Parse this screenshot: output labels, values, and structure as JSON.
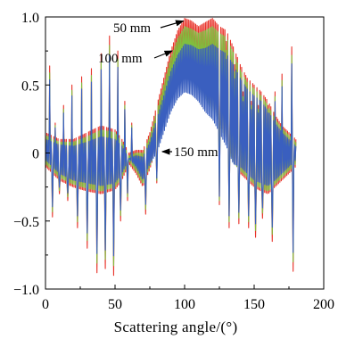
{
  "chart_data": {
    "type": "line",
    "title": "",
    "xlabel": "Scattering angle/(°)",
    "ylabel": "",
    "xlim": [
      0,
      200
    ],
    "ylim": [
      -1.0,
      1.0
    ],
    "x_ticks": [
      0,
      50,
      100,
      150,
      200
    ],
    "x_tick_labels": [
      "0",
      "50",
      "100",
      "150",
      "200"
    ],
    "y_ticks": [
      -1.0,
      -0.5,
      0,
      0.5,
      1.0
    ],
    "y_tick_labels": [
      "−1.0",
      "−0.5",
      "0",
      "0.5",
      "1.0"
    ],
    "grid": false,
    "legend": "none",
    "x_range": [
      0,
      180
    ],
    "series": [
      {
        "name": "50 mm",
        "color": "#e8332a",
        "x": [
          0,
          10,
          20,
          30,
          40,
          50,
          55,
          60,
          65,
          70,
          75,
          80,
          85,
          90,
          95,
          100,
          105,
          110,
          115,
          120,
          125,
          130,
          135,
          140,
          145,
          150,
          155,
          160,
          165,
          170,
          175,
          180
        ],
        "upper": [
          0.15,
          0.1,
          0.1,
          0.15,
          0.2,
          0.17,
          0.1,
          0.0,
          0.02,
          0.02,
          0.15,
          0.35,
          0.55,
          0.75,
          0.9,
          0.99,
          0.97,
          0.93,
          0.96,
          0.99,
          0.93,
          0.9,
          0.78,
          0.65,
          0.55,
          0.5,
          0.45,
          0.38,
          0.28,
          0.2,
          0.15,
          0.1
        ],
        "lower": [
          -0.1,
          -0.2,
          -0.25,
          -0.28,
          -0.3,
          -0.27,
          -0.2,
          -0.08,
          -0.15,
          -0.25,
          -0.12,
          0.05,
          0.25,
          0.42,
          0.55,
          0.62,
          0.6,
          0.5,
          0.42,
          0.35,
          0.25,
          0.1,
          -0.05,
          -0.15,
          -0.2,
          -0.25,
          -0.28,
          -0.3,
          -0.25,
          -0.2,
          -0.15,
          -0.1
        ],
        "peaks": [
          {
            "x": 3,
            "y": 0.64
          },
          {
            "x": 7,
            "y": 0.22
          },
          {
            "x": 13,
            "y": 0.35
          },
          {
            "x": 19,
            "y": 0.5
          },
          {
            "x": 26,
            "y": 0.56
          },
          {
            "x": 33,
            "y": 0.62
          },
          {
            "x": 40,
            "y": 0.73
          },
          {
            "x": 46,
            "y": 0.86
          },
          {
            "x": 52,
            "y": 0.75
          },
          {
            "x": 57,
            "y": 0.38
          },
          {
            "x": 62,
            "y": 0.22
          },
          {
            "x": 130,
            "y": 0.82
          },
          {
            "x": 136,
            "y": 0.65
          },
          {
            "x": 142,
            "y": 0.45
          },
          {
            "x": 148,
            "y": 0.38
          },
          {
            "x": 153,
            "y": 0.35
          },
          {
            "x": 160,
            "y": 0.35
          },
          {
            "x": 165,
            "y": 0.45
          },
          {
            "x": 170,
            "y": 0.58
          },
          {
            "x": 177,
            "y": 0.78
          }
        ],
        "troughs": [
          {
            "x": 5,
            "y": -0.47
          },
          {
            "x": 10,
            "y": -0.3
          },
          {
            "x": 16,
            "y": -0.35
          },
          {
            "x": 23,
            "y": -0.55
          },
          {
            "x": 30,
            "y": -0.7
          },
          {
            "x": 37,
            "y": -0.88
          },
          {
            "x": 43,
            "y": -0.85
          },
          {
            "x": 49,
            "y": -0.9
          },
          {
            "x": 54,
            "y": -0.5
          },
          {
            "x": 59,
            "y": -0.35
          },
          {
            "x": 72,
            "y": -0.45
          },
          {
            "x": 80,
            "y": -0.22
          },
          {
            "x": 125,
            "y": -0.38
          },
          {
            "x": 132,
            "y": -0.55
          },
          {
            "x": 139,
            "y": -0.52
          },
          {
            "x": 146,
            "y": -0.55
          },
          {
            "x": 151,
            "y": -0.62
          },
          {
            "x": 156,
            "y": -0.48
          },
          {
            "x": 163,
            "y": -0.65
          },
          {
            "x": 170,
            "y": -0.72
          },
          {
            "x": 178,
            "y": -0.87
          }
        ]
      },
      {
        "name": "100 mm",
        "color": "#7fbf3f",
        "x": [
          0,
          10,
          20,
          30,
          40,
          50,
          55,
          60,
          65,
          70,
          75,
          80,
          85,
          90,
          95,
          100,
          105,
          110,
          115,
          120,
          125,
          130,
          135,
          140,
          145,
          150,
          155,
          160,
          165,
          170,
          175,
          180
        ],
        "upper": [
          0.13,
          0.08,
          0.08,
          0.12,
          0.17,
          0.15,
          0.08,
          -0.02,
          0.0,
          0.0,
          0.12,
          0.31,
          0.5,
          0.7,
          0.84,
          0.93,
          0.91,
          0.88,
          0.9,
          0.93,
          0.88,
          0.85,
          0.74,
          0.61,
          0.52,
          0.47,
          0.42,
          0.35,
          0.25,
          0.18,
          0.13,
          0.08
        ],
        "lower": [
          -0.08,
          -0.18,
          -0.23,
          -0.26,
          -0.28,
          -0.25,
          -0.18,
          -0.06,
          -0.13,
          -0.23,
          -0.1,
          0.03,
          0.22,
          0.39,
          0.51,
          0.58,
          0.56,
          0.47,
          0.39,
          0.32,
          0.22,
          0.08,
          -0.07,
          -0.13,
          -0.18,
          -0.23,
          -0.26,
          -0.28,
          -0.23,
          -0.18,
          -0.13,
          -0.08
        ]
      },
      {
        "name": "150 mm",
        "color": "#3a5fbf",
        "x": [
          0,
          10,
          20,
          30,
          40,
          50,
          55,
          60,
          65,
          70,
          75,
          80,
          85,
          90,
          95,
          100,
          105,
          110,
          115,
          120,
          125,
          130,
          135,
          140,
          145,
          150,
          155,
          160,
          165,
          170,
          175,
          180
        ],
        "upper": [
          0.1,
          0.06,
          0.05,
          0.08,
          0.12,
          0.1,
          0.05,
          -0.04,
          -0.02,
          -0.03,
          0.08,
          0.25,
          0.42,
          0.6,
          0.72,
          0.8,
          0.79,
          0.76,
          0.77,
          0.8,
          0.76,
          0.73,
          0.65,
          0.55,
          0.47,
          0.42,
          0.38,
          0.31,
          0.22,
          0.15,
          0.1,
          0.05
        ],
        "lower": [
          -0.05,
          -0.15,
          -0.2,
          -0.22,
          -0.24,
          -0.22,
          -0.15,
          -0.04,
          -0.1,
          -0.2,
          -0.08,
          0.0,
          0.15,
          0.3,
          0.4,
          0.45,
          0.43,
          0.38,
          0.3,
          0.25,
          0.15,
          0.05,
          -0.08,
          -0.1,
          -0.15,
          -0.2,
          -0.22,
          -0.24,
          -0.2,
          -0.15,
          -0.1,
          -0.05
        ]
      }
    ],
    "annotations": [
      {
        "text": "50 mm",
        "points_to": {
          "x": 99,
          "y": 0.97
        }
      },
      {
        "text": "100 mm",
        "points_to": {
          "x": 91,
          "y": 0.75
        }
      },
      {
        "text": "150 mm",
        "points_to": {
          "x": 84,
          "y": 0.01
        }
      }
    ]
  }
}
